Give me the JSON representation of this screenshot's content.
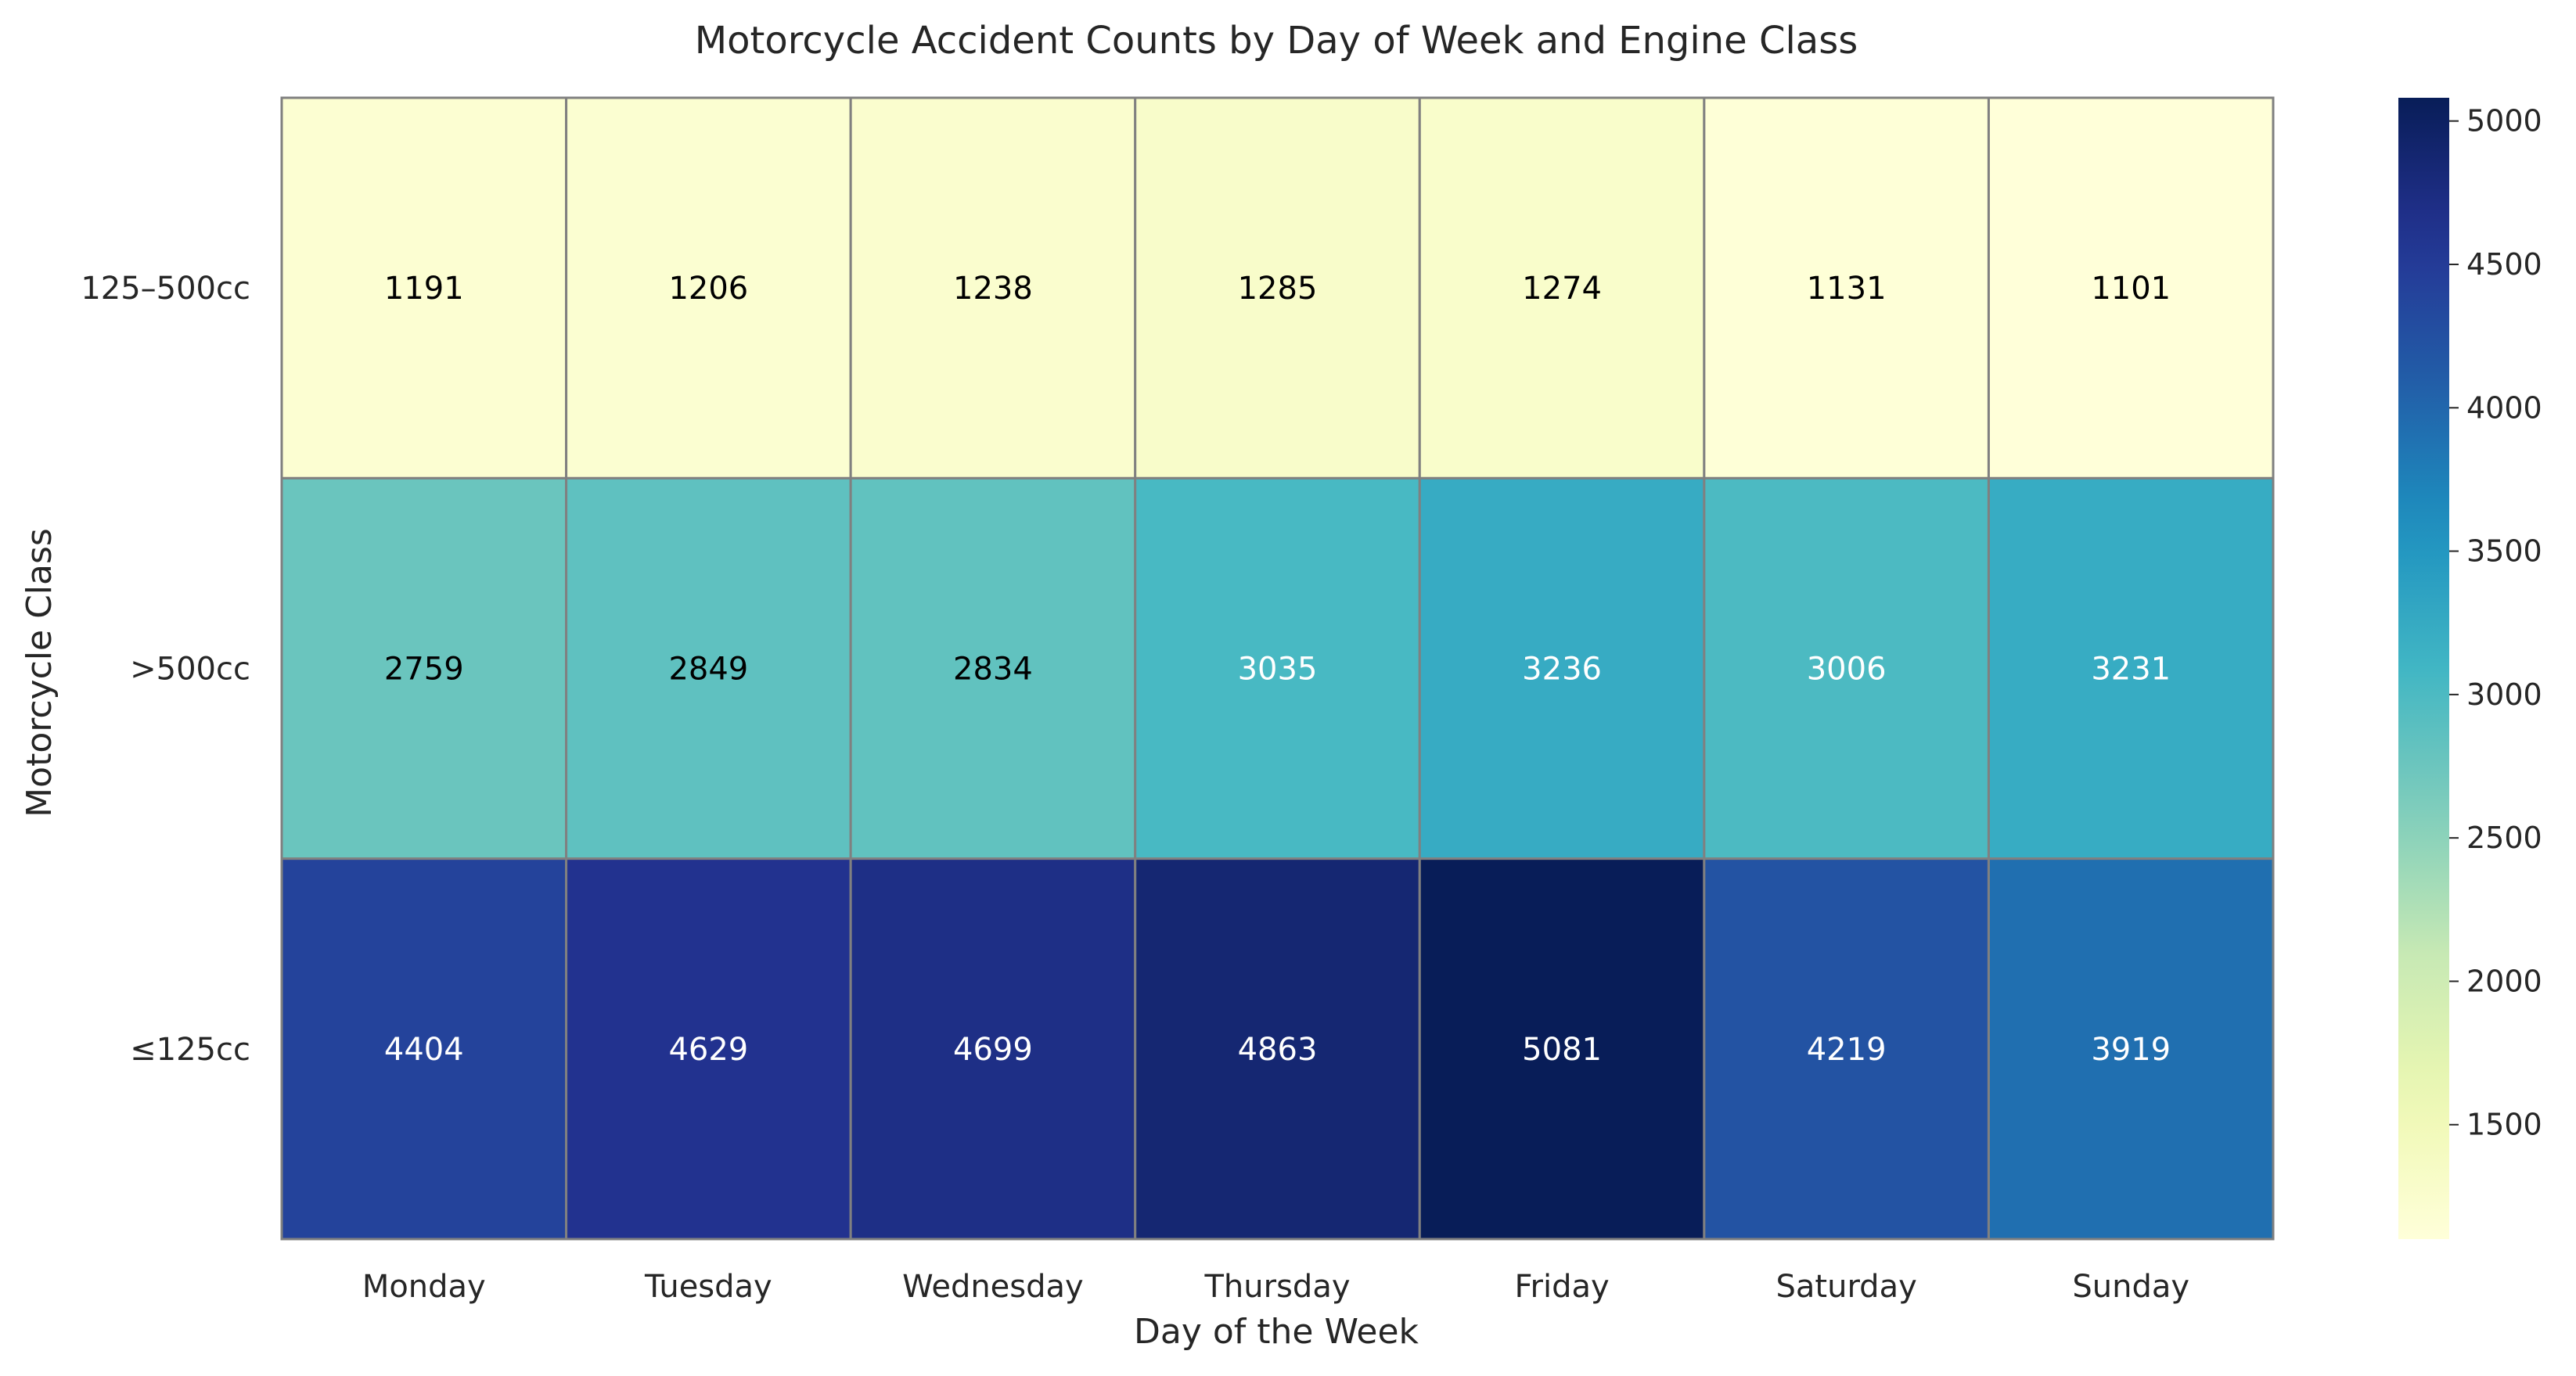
{
  "chart_data": {
    "type": "heatmap",
    "title": "Motorcycle Accident Counts by Day of Week and Engine Class",
    "xlabel": "Day of the Week",
    "ylabel": "Motorcycle Class",
    "x_categories": [
      "Monday",
      "Tuesday",
      "Wednesday",
      "Thursday",
      "Friday",
      "Saturday",
      "Sunday"
    ],
    "y_categories": [
      "125–500cc",
      ">500cc",
      "≤125cc"
    ],
    "values": [
      [
        1191,
        1206,
        1238,
        1285,
        1274,
        1131,
        1101
      ],
      [
        2759,
        2849,
        2834,
        3035,
        3236,
        3006,
        3231
      ],
      [
        4404,
        4629,
        4699,
        4863,
        5081,
        4219,
        3919
      ]
    ],
    "colormap": "YlGnBu",
    "color_range": [
      1101,
      5081
    ],
    "colorbar_ticks": [
      "1500",
      "2000",
      "2500",
      "3000",
      "3500",
      "4000",
      "4500",
      "5000"
    ],
    "grid_line_color": "#808080"
  }
}
